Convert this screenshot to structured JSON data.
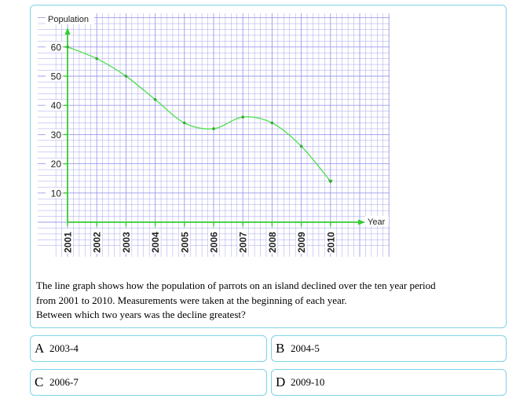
{
  "chart_data": {
    "type": "line",
    "title": "",
    "ylabel": "Population",
    "xlabel": "Year",
    "ylim": [
      0,
      66
    ],
    "y_ticks": [
      10,
      20,
      30,
      40,
      50,
      60
    ],
    "categories": [
      "2001",
      "2002",
      "2003",
      "2004",
      "2005",
      "2006",
      "2007",
      "2008",
      "2009",
      "2010"
    ],
    "series": [
      {
        "values": [
          60,
          56,
          50,
          42,
          34,
          32,
          36,
          34,
          26,
          14
        ]
      }
    ],
    "grid": true,
    "line_color": "#55e055",
    "axis_color": "#33cc33",
    "grid_color": "#9b9bec"
  },
  "question": {
    "lines": [
      "The line graph shows how the population of parrots on an island declined over the ten year period",
      "from 2001 to 2010. Measurements were taken at the beginning of each year.",
      "Between which two years was the decline greatest?"
    ]
  },
  "options": [
    {
      "letter": "A",
      "text": "2003-4"
    },
    {
      "letter": "B",
      "text": "2004-5"
    },
    {
      "letter": "C",
      "text": "2006-7"
    },
    {
      "letter": "D",
      "text": "2009-10"
    }
  ]
}
